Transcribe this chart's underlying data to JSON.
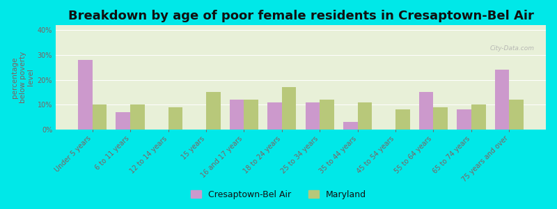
{
  "title": "Breakdown by age of poor female residents in Cresaptown-Bel Air",
  "categories": [
    "Under 5 years",
    "6 to 11 years",
    "12 to 14 years",
    "15 years",
    "16 and 17 years",
    "18 to 24 years",
    "25 to 34 years",
    "35 to 44 years",
    "45 to 54 years",
    "55 to 64 years",
    "65 to 74 years",
    "75 years and over"
  ],
  "cresaptown_values": [
    28,
    7,
    0,
    0,
    12,
    11,
    11,
    3,
    0,
    15,
    8,
    24
  ],
  "maryland_values": [
    10,
    10,
    9,
    15,
    12,
    17,
    12,
    11,
    8,
    9,
    10,
    12
  ],
  "cresaptown_color": "#cc99cc",
  "maryland_color": "#b8c87a",
  "plot_bg": "#e8f0d8",
  "outer_bg": "#00e8e8",
  "ylabel": "percentage\nbelow poverty\nlevel",
  "ylim": [
    0,
    42
  ],
  "yticks": [
    0,
    10,
    20,
    30,
    40
  ],
  "legend_label_1": "Cresaptown-Bel Air",
  "legend_label_2": "Maryland",
  "title_fontsize": 13,
  "axis_label_fontsize": 7.5,
  "tick_fontsize": 7,
  "xtick_color": "#806060",
  "ytick_color": "#806060",
  "ylabel_color": "#806060",
  "watermark": "City-Data.com"
}
